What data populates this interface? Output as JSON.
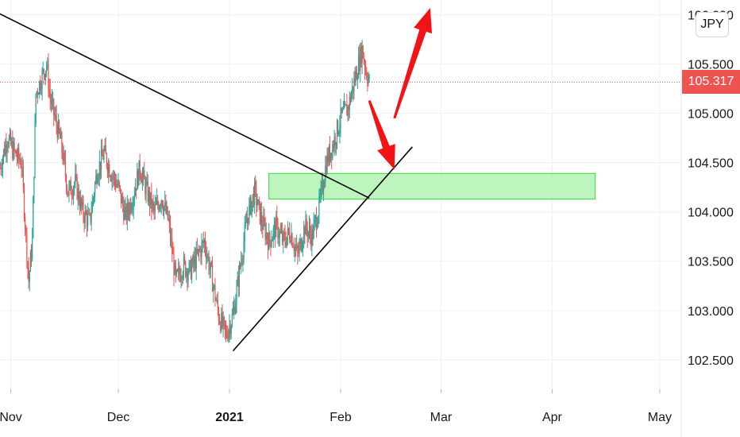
{
  "chart_data": {
    "type": "candlestick",
    "symbol": "JPY",
    "last_price": "105.317",
    "colors": {
      "up": "#26a69a",
      "down": "#ef5350",
      "zone_fill": "#a8f0a8",
      "zone_stroke": "#3cd43c",
      "price_line": "#ef5350",
      "price_tag": "#ef5350",
      "trendline": "#000000",
      "arrow": "#f21414"
    },
    "y_ticks": [
      "102.500",
      "103.000",
      "103.500",
      "104.000",
      "104.500",
      "105.000",
      "105.500",
      "106.000"
    ],
    "y_tick_values": [
      102.5,
      103.0,
      103.5,
      104.0,
      104.5,
      105.0,
      105.5,
      106.0
    ],
    "ylim": [
      102.2,
      106.15
    ],
    "x_ticks": [
      "Nov",
      "Dec",
      "2021",
      "Feb",
      "Mar",
      "Apr",
      "May"
    ],
    "x_tick_dates": [
      "2020-11-01",
      "2020-12-01",
      "2021-01-01",
      "2021-02-01",
      "2021-03-01",
      "2021-04-01",
      "2021-05-01"
    ],
    "x_tick_bold": [
      false,
      false,
      true,
      false,
      false,
      false,
      false
    ],
    "xlim": [
      "2020-10-29",
      "2021-05-07"
    ],
    "price_path": [
      [
        "2020-10-29",
        104.45
      ],
      [
        "2020-10-31",
        104.75
      ],
      [
        "2020-11-02",
        104.6
      ],
      [
        "2020-11-04",
        104.5
      ],
      [
        "2020-11-05",
        103.9
      ],
      [
        "2020-11-06",
        103.3
      ],
      [
        "2020-11-07",
        103.7
      ],
      [
        "2020-11-08",
        105.2
      ],
      [
        "2020-11-10",
        105.4
      ],
      [
        "2020-11-11",
        105.5
      ],
      [
        "2020-11-12",
        105.15
      ],
      [
        "2020-11-13",
        105.0
      ],
      [
        "2020-11-15",
        104.7
      ],
      [
        "2020-11-17",
        104.2
      ],
      [
        "2020-11-19",
        104.3
      ],
      [
        "2020-11-21",
        104.0
      ],
      [
        "2020-11-23",
        103.9
      ],
      [
        "2020-11-25",
        104.4
      ],
      [
        "2020-11-27",
        104.6
      ],
      [
        "2020-11-29",
        104.4
      ],
      [
        "2020-12-01",
        104.25
      ],
      [
        "2020-12-03",
        103.95
      ],
      [
        "2020-12-05",
        104.15
      ],
      [
        "2020-12-07",
        104.45
      ],
      [
        "2020-12-09",
        104.2
      ],
      [
        "2020-12-11",
        104.0
      ],
      [
        "2020-12-13",
        104.15
      ],
      [
        "2020-12-15",
        103.9
      ],
      [
        "2020-12-17",
        103.3
      ],
      [
        "2020-12-19",
        103.45
      ],
      [
        "2020-12-21",
        103.4
      ],
      [
        "2020-12-23",
        103.55
      ],
      [
        "2020-12-25",
        103.7
      ],
      [
        "2020-12-27",
        103.35
      ],
      [
        "2020-12-29",
        102.95
      ],
      [
        "2020-12-31",
        102.75
      ],
      [
        "2021-01-02",
        102.95
      ],
      [
        "2021-01-04",
        103.45
      ],
      [
        "2021-01-06",
        103.95
      ],
      [
        "2021-01-08",
        104.2
      ],
      [
        "2021-01-10",
        103.9
      ],
      [
        "2021-01-12",
        103.7
      ],
      [
        "2021-01-14",
        103.85
      ],
      [
        "2021-01-16",
        103.7
      ],
      [
        "2021-01-18",
        103.8
      ],
      [
        "2021-01-20",
        103.55
      ],
      [
        "2021-01-22",
        103.85
      ],
      [
        "2021-01-24",
        103.75
      ],
      [
        "2021-01-26",
        104.05
      ],
      [
        "2021-01-28",
        104.5
      ],
      [
        "2021-01-30",
        104.7
      ],
      [
        "2021-02-01",
        104.95
      ],
      [
        "2021-02-03",
        105.05
      ],
      [
        "2021-02-05",
        105.35
      ],
      [
        "2021-02-07",
        105.65
      ],
      [
        "2021-02-08",
        105.45
      ],
      [
        "2021-02-09",
        105.32
      ]
    ],
    "zone": {
      "from": "2021-01-12",
      "to": "2021-04-13",
      "low": 104.13,
      "high": 104.39
    },
    "trendlines": [
      {
        "from": [
          "2020-10-24",
          106.1
        ],
        "to": [
          "2021-02-09",
          104.14
        ]
      },
      {
        "from": [
          "2021-01-02",
          102.59
        ],
        "to": [
          "2021-02-21",
          104.66
        ]
      }
    ],
    "arrows": [
      {
        "from": [
          "2021-02-09",
          105.13
        ],
        "to": [
          "2021-02-16",
          104.43
        ]
      },
      {
        "from": [
          "2021-02-16",
          104.95
        ],
        "to": [
          "2021-02-26",
          106.07
        ]
      }
    ]
  }
}
